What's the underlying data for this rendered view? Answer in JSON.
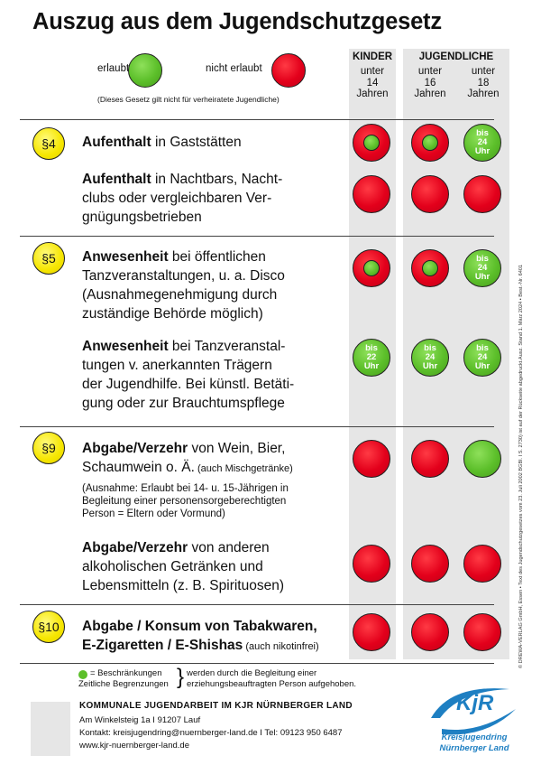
{
  "title": "Auszug aus dem Jugendschutzgesetz",
  "legend": {
    "allowed": "erlaubt",
    "not_allowed": "nicht erlaubt",
    "note": "(Dieses Gesetz gilt nicht für verheiratete Jugendliche)"
  },
  "columns": {
    "kinder": "KINDER",
    "jugendliche": "JUGENDLICHE",
    "col1": [
      "unter",
      "14",
      "Jahren"
    ],
    "col2": [
      "unter",
      "16",
      "Jahren"
    ],
    "col3": [
      "unter",
      "18",
      "Jahren"
    ]
  },
  "sections": {
    "s4": "§4",
    "s5": "§5",
    "s9": "§9",
    "s10": "§10"
  },
  "rows": {
    "r1": {
      "bold": "Aufenthalt",
      "rest": " in Gaststätten",
      "c1": "red-green",
      "c2": "red-green",
      "c3": "bis 24 Uhr"
    },
    "r2": {
      "bold": "Aufenthalt",
      "rest": " in Nachtbars, Nacht-",
      "l2": "clubs oder vergleichbaren Ver-",
      "l3": "gnügungsbetrieben"
    },
    "r3": {
      "bold": "Anwesenheit",
      "rest": " bei öffentlichen",
      "l2": "Tanzveranstaltungen, u. a. Disco",
      "l3": "(Ausnahmegenehmigung durch",
      "l4": "zuständige Behörde möglich)",
      "c3": "bis 24 Uhr"
    },
    "r4": {
      "bold": "Anwesenheit",
      "rest": " bei Tanzveranstal-",
      "l2": "tungen v. anerkannten Trägern",
      "l3": "der Jugendhilfe. Bei künstl. Betäti-",
      "l4": "gung oder zur Brauchtumspflege",
      "c1": "bis 22 Uhr",
      "c2": "bis 24 Uhr",
      "c3": "bis 24 Uhr"
    },
    "r5": {
      "bold": "Abgabe/Verzehr",
      "rest": " von Wein, Bier,",
      "l2": "Schaumwein o. Ä.",
      "l2small": " (auch Mischgetränke)",
      "n1": "(Ausnahme: Erlaubt bei 14- u. 15-Jährigen in",
      "n2": "Begleitung einer personensorgeberechtigten",
      "n3": "Person = Eltern oder Vormund)"
    },
    "r6": {
      "bold": "Abgabe/Verzehr",
      "rest": " von anderen",
      "l2": "alkoholischen Getränken und",
      "l3": "Lebensmitteln (z. B. Spirituosen)"
    },
    "r7": {
      "bold": "Abgabe / Konsum von Tabakwaren,",
      "l2bold": "E-Zigaretten / E-Shishas",
      "l2small": " (auch nikotinfrei)"
    }
  },
  "footnote": {
    "eq": "= Beschränkungen",
    "l2": "Zeitliche Begrenzungen",
    "r1": "werden durch die Begleitung einer",
    "r2": "erziehungsbeauftragten Person aufgehoben."
  },
  "footer": {
    "org": "KOMMUNALE JUGENDARBEIT IM KJR NÜRNBERGER LAND",
    "address": "Am Winkelsteig 1a I 91207 Lauf",
    "contact": "Kontakt: kreisjugendring@nuernberger-land.de I Tel: 09123 950 6487",
    "web": "www.kjr-nuernberger-land.de"
  },
  "logo": {
    "mark": "KjR",
    "line1": "Kreisjugendring",
    "line2": "Nürnberger Land"
  },
  "side_text": "© DREWA-VERLAG GmbH, Essen • Text des Jugendschutzgesetzes vom 23. Juli 2002 BGBl. I S. 2730) ist auf der Rückseite abgedruckt.Ausz. Stand 1. März 2024 • Best.-Nr. 6401",
  "colors": {
    "red": "#e3001b",
    "green": "#5cbf2a",
    "yellow": "#f6e600",
    "blue": "#1e7fc2"
  }
}
